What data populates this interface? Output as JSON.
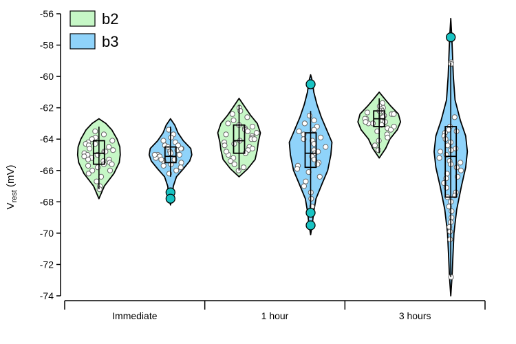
{
  "chart_data": {
    "type": "violin",
    "ylabel": {
      "main": "V",
      "sub": "rest",
      "unit": " (mV)"
    },
    "ylim": [
      -74,
      -56
    ],
    "yticks": [
      -56,
      -58,
      -60,
      -62,
      -64,
      -66,
      -68,
      -70,
      -72,
      -74
    ],
    "categories": [
      "Immediate",
      "1 hour",
      "3 hours"
    ],
    "legend": {
      "placement": "top-left"
    },
    "series": [
      {
        "name": "b2",
        "color": "#c6f7c6",
        "groups": [
          {
            "category": "Immediate",
            "range": [
              -67.8,
              -62.7
            ],
            "box": {
              "q1": -65.6,
              "median": -64.9,
              "q3": -64.1,
              "whisker_low": -67.2,
              "whisker_high": -63.2
            },
            "density": [
              [
                -67.8,
                0.0
              ],
              [
                -67.0,
                0.25
              ],
              [
                -66.2,
                0.7
              ],
              [
                -65.5,
                0.95
              ],
              [
                -65.0,
                1.0
              ],
              [
                -64.5,
                0.98
              ],
              [
                -64.0,
                0.85
              ],
              [
                -63.4,
                0.6
              ],
              [
                -63.0,
                0.32
              ],
              [
                -62.7,
                0.0
              ]
            ],
            "points": [
              -63.5,
              -63.7,
              -63.9,
              -64.0,
              -64.1,
              -64.2,
              -64.3,
              -64.4,
              -64.5,
              -64.6,
              -64.7,
              -64.8,
              -64.9,
              -65.0,
              -65.0,
              -65.1,
              -65.2,
              -65.3,
              -65.4,
              -65.5,
              -65.6,
              -65.7,
              -65.8,
              -66.0,
              -66.2,
              -66.4,
              -66.7,
              -67.0,
              -67.2,
              -64.3,
              -64.8,
              -65.3,
              -65.6,
              -66.0
            ]
          },
          {
            "category": "1 hour",
            "range": [
              -66.4,
              -61.4
            ],
            "box": {
              "q1": -64.9,
              "median": -64.1,
              "q3": -63.1,
              "whisker_low": -66.0,
              "whisker_high": -61.8
            },
            "density": [
              [
                -66.4,
                0.0
              ],
              [
                -65.9,
                0.4
              ],
              [
                -65.3,
                0.75
              ],
              [
                -64.7,
                0.85
              ],
              [
                -64.2,
                0.9
              ],
              [
                -63.6,
                1.0
              ],
              [
                -63.0,
                0.85
              ],
              [
                -62.5,
                0.55
              ],
              [
                -62.0,
                0.3
              ],
              [
                -61.4,
                0.0
              ]
            ],
            "points": [
              -62.0,
              -62.2,
              -62.4,
              -62.6,
              -62.8,
              -63.0,
              -63.1,
              -63.2,
              -63.3,
              -63.4,
              -63.6,
              -63.7,
              -63.8,
              -63.9,
              -64.0,
              -64.1,
              -64.2,
              -64.3,
              -64.4,
              -64.5,
              -64.6,
              -64.7,
              -64.9,
              -65.0,
              -65.2,
              -65.4,
              -65.6,
              -65.8,
              -66.0,
              -63.5,
              -64.0,
              -64.8
            ]
          },
          {
            "category": "3 hours",
            "range": [
              -65.2,
              -61.0
            ],
            "box": {
              "q1": -63.2,
              "median": -62.7,
              "q3": -62.2,
              "whisker_low": -64.9,
              "whisker_high": -61.4
            },
            "density": [
              [
                -65.2,
                0.0
              ],
              [
                -64.6,
                0.3
              ],
              [
                -64.0,
                0.5
              ],
              [
                -63.4,
                0.85
              ],
              [
                -62.9,
                1.0
              ],
              [
                -62.4,
                0.9
              ],
              [
                -61.9,
                0.55
              ],
              [
                -61.5,
                0.3
              ],
              [
                -61.0,
                0.0
              ]
            ],
            "points": [
              -61.7,
              -61.9,
              -62.0,
              -62.1,
              -62.2,
              -62.3,
              -62.4,
              -62.5,
              -62.6,
              -62.7,
              -62.7,
              -62.8,
              -62.9,
              -63.0,
              -63.1,
              -63.2,
              -63.3,
              -63.4,
              -63.5,
              -63.7,
              -63.9,
              -64.1,
              -64.4,
              -64.7,
              -62.2,
              -62.6,
              -63.0,
              -62.4,
              -62.9
            ]
          }
        ]
      },
      {
        "name": "b3",
        "color": "#8fd3fa",
        "groups": [
          {
            "category": "Immediate",
            "range": [
              -68.2,
              -62.7
            ],
            "box": {
              "q1": -65.5,
              "median": -65.1,
              "q3": -64.5,
              "whisker_low": -66.4,
              "whisker_high": -63.2
            },
            "density": [
              [
                -68.2,
                0.0
              ],
              [
                -67.6,
                0.08
              ],
              [
                -67.0,
                0.13
              ],
              [
                -66.4,
                0.28
              ],
              [
                -65.9,
                0.6
              ],
              [
                -65.4,
                0.9
              ],
              [
                -65.0,
                1.0
              ],
              [
                -64.6,
                0.95
              ],
              [
                -64.1,
                0.6
              ],
              [
                -63.6,
                0.35
              ],
              [
                -63.1,
                0.2
              ],
              [
                -62.7,
                0.0
              ]
            ],
            "points": [
              -63.4,
              -63.7,
              -63.9,
              -64.1,
              -64.2,
              -64.4,
              -64.5,
              -64.6,
              -64.7,
              -64.8,
              -64.9,
              -65.0,
              -65.0,
              -65.1,
              -65.2,
              -65.3,
              -65.4,
              -65.5,
              -65.6,
              -65.7,
              -65.8,
              -66.0,
              -66.2,
              -64.6,
              -65.0,
              -65.3,
              -64.4
            ],
            "outliers": [
              -67.4,
              -67.8
            ]
          },
          {
            "category": "1 hour",
            "range": [
              -70.1,
              -59.9
            ],
            "box": {
              "q1": -65.8,
              "median": -64.9,
              "q3": -63.6,
              "whisker_low": -68.4,
              "whisker_high": -62.2
            },
            "density": [
              [
                -70.1,
                0.0
              ],
              [
                -69.4,
                0.08
              ],
              [
                -68.6,
                0.15
              ],
              [
                -67.8,
                0.25
              ],
              [
                -66.8,
                0.55
              ],
              [
                -66.0,
                0.8
              ],
              [
                -65.0,
                0.95
              ],
              [
                -64.2,
                1.0
              ],
              [
                -63.4,
                0.75
              ],
              [
                -62.6,
                0.5
              ],
              [
                -61.8,
                0.3
              ],
              [
                -61.0,
                0.15
              ],
              [
                -60.3,
                0.08
              ],
              [
                -59.9,
                0.0
              ]
            ],
            "points": [
              -62.5,
              -62.8,
              -63.0,
              -63.2,
              -63.5,
              -63.7,
              -63.9,
              -64.1,
              -64.3,
              -64.5,
              -64.7,
              -64.9,
              -65.1,
              -65.3,
              -65.5,
              -65.7,
              -65.9,
              -66.1,
              -66.4,
              -66.7,
              -67.0,
              -67.4,
              -67.8,
              -68.3,
              -64.0,
              -64.8,
              -65.6,
              -63.4
            ],
            "outliers": [
              -60.5,
              -68.7,
              -69.5
            ]
          },
          {
            "category": "3 hours",
            "range": [
              -74.0,
              -56.3
            ],
            "box": {
              "q1": -67.7,
              "median": -65.1,
              "q3": -63.2,
              "whisker_low": -72.8,
              "whisker_high": -59.1
            },
            "density": [
              [
                -74.0,
                0.0
              ],
              [
                -72.8,
                0.06
              ],
              [
                -71.5,
                0.1
              ],
              [
                -70.0,
                0.15
              ],
              [
                -68.5,
                0.28
              ],
              [
                -67.0,
                0.5
              ],
              [
                -65.8,
                0.7
              ],
              [
                -64.8,
                0.78
              ],
              [
                -63.8,
                0.7
              ],
              [
                -62.8,
                0.45
              ],
              [
                -61.5,
                0.2
              ],
              [
                -60.0,
                0.12
              ],
              [
                -58.5,
                0.08
              ],
              [
                -57.5,
                0.05
              ],
              [
                -56.3,
                0.0
              ]
            ],
            "points": [
              -59.1,
              -59.2,
              -62.6,
              -63.2,
              -63.4,
              -63.6,
              -63.8,
              -64.0,
              -64.2,
              -64.4,
              -64.6,
              -64.8,
              -65.0,
              -65.2,
              -65.4,
              -65.6,
              -65.8,
              -66.0,
              -66.2,
              -66.5,
              -66.8,
              -67.1,
              -67.4,
              -67.7,
              -68.0,
              -68.3,
              -68.6,
              -69.0,
              -69.3,
              -69.6,
              -69.9,
              -70.4,
              -72.8,
              -64.7,
              -65.5,
              -66.4,
              -67.6,
              -63.5
            ],
            "outliers": [
              -57.5
            ]
          }
        ]
      }
    ]
  }
}
